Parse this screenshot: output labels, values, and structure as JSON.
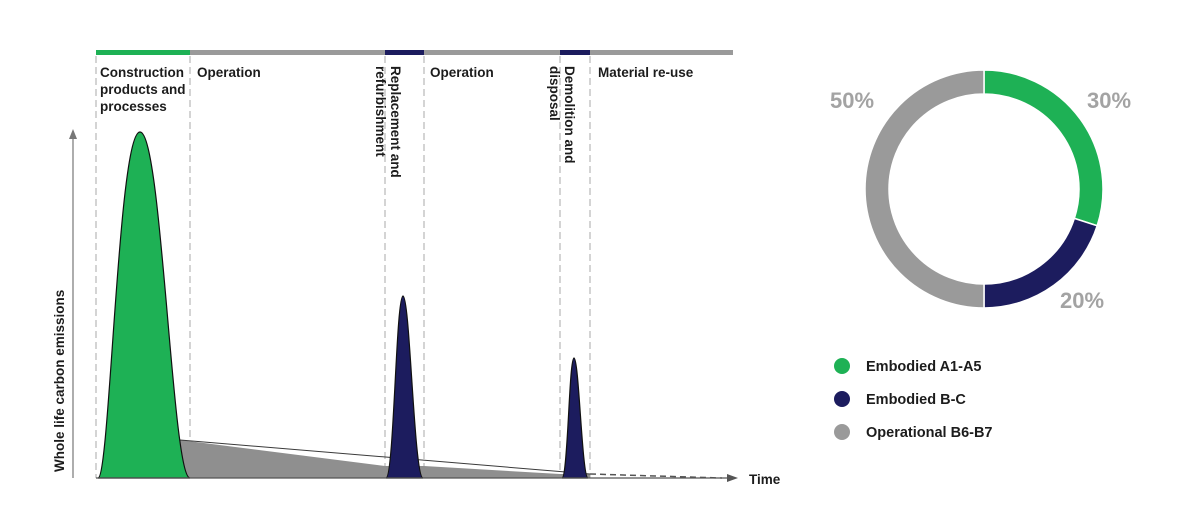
{
  "colors": {
    "embodied_a": "#1eb155",
    "embodied_bc": "#1c1c5e",
    "operational": "#9a9a9a",
    "operational_fill": "#8f8f8f",
    "dashed": "#a8a8a8",
    "text": "#1c1c1c",
    "pct": "#a3a3a3"
  },
  "chart_data": [
    {
      "type": "area",
      "ylabel": "Whole life carbon emissions",
      "xlabel": "Time",
      "phases": [
        {
          "label": "Construction products and processes",
          "color": "embodied_a"
        },
        {
          "label": "Operation",
          "color": "operational"
        },
        {
          "label": "Replacement and refurbishment",
          "color": "embodied_bc"
        },
        {
          "label": "Operation",
          "color": "operational"
        },
        {
          "label": "Demolition and disposal",
          "color": "embodied_bc"
        },
        {
          "label": "Material re-use",
          "color": "operational"
        }
      ],
      "peaks": [
        {
          "name": "Construction",
          "relative_height": 1.0,
          "color": "embodied_a"
        },
        {
          "name": "Replacement",
          "relative_height": 0.52,
          "color": "embodied_bc"
        },
        {
          "name": "Demolition",
          "relative_height": 0.34,
          "color": "embodied_bc"
        }
      ]
    },
    {
      "type": "pie",
      "style": "donut",
      "slices": [
        {
          "label": "Embodied A1-A5",
          "value": 30,
          "value_label": "30%",
          "color": "embodied_a"
        },
        {
          "label": "Embodied B-C",
          "value": 20,
          "value_label": "20%",
          "color": "embodied_bc"
        },
        {
          "label": "Operational B6-B7",
          "value": 50,
          "value_label": "50%",
          "color": "operational"
        }
      ],
      "legend": [
        "Embodied A1-A5",
        "Embodied B-C",
        "Operational B6-B7"
      ]
    }
  ]
}
